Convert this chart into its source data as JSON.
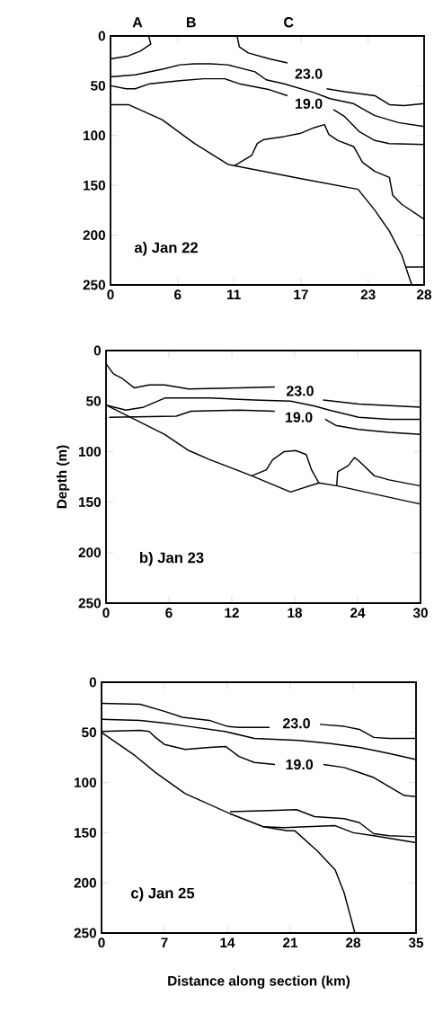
{
  "chart_data": [
    {
      "type": "line",
      "title": "a) Jan 22",
      "xlim": [
        0,
        28
      ],
      "ylim": [
        250,
        0
      ],
      "xticks": [
        0,
        6,
        11,
        17,
        23,
        28
      ],
      "yticks": [
        0,
        50,
        100,
        150,
        200,
        250
      ],
      "series": [
        {
          "color": "#000000",
          "x": [
            0,
            1.6,
            2.7,
            3.6,
            3.4
          ],
          "values": [
            23,
            20,
            15,
            8,
            0
          ]
        },
        {
          "color": "#000000",
          "x": [
            11.3,
            11.5,
            12.3,
            14.2,
            15.8,
            17.6,
            19.3,
            20.9,
            23.6,
            24.9,
            26.2,
            28
          ],
          "values": [
            0,
            11,
            17,
            23,
            27,
            null,
            53,
            56,
            60,
            69,
            70,
            68
          ]
        },
        {
          "color": "#000000",
          "x": [
            0,
            2.2,
            4.8,
            6.2,
            7.5,
            8.9,
            10.5,
            12.9,
            13.9,
            15.5,
            18.2,
            19.6,
            21.7,
            23.6,
            25.7,
            28
          ],
          "values": [
            41,
            39,
            33,
            29,
            28,
            28,
            29,
            36,
            44,
            48,
            57,
            63,
            68,
            80,
            87,
            91
          ]
        },
        {
          "color": "#000000",
          "x": [
            0,
            1.4,
            2.2,
            3.5,
            6.2,
            8.3,
            10.2,
            11.5,
            14.2,
            15.8,
            17.8,
            19.9,
            20.9,
            22.2,
            23.6,
            24.9,
            28
          ],
          "values": [
            50,
            53,
            53,
            48,
            45,
            43,
            43,
            48,
            54,
            60,
            null,
            74,
            81,
            96,
            105,
            108,
            109
          ]
        },
        {
          "color": "#000000",
          "x": [
            0,
            1.6,
            4.6,
            7.5,
            10.5,
            16.9,
            22.1,
            23.6,
            24.9,
            26,
            26.9
          ],
          "values": [
            69,
            69,
            84,
            108,
            129,
            143,
            154,
            175,
            196,
            220,
            250
          ]
        },
        {
          "color": "#000000",
          "x": [
            11.1,
            12.6,
            13.1,
            13.7,
            15.5,
            16.9,
            18.2,
            19.1,
            19.5,
            20.3,
            21.7,
            22.5,
            23.6,
            24.9,
            25.2,
            26,
            28
          ],
          "values": [
            130,
            120,
            108,
            104,
            101,
            98,
            92,
            89,
            99,
            105,
            111,
            127,
            136,
            142,
            160,
            169,
            184
          ]
        },
        {
          "color": "#000000",
          "x": [
            26.4,
            28
          ],
          "values": [
            232,
            232
          ]
        }
      ],
      "annotations": [
        "A",
        "B",
        "C",
        "23.0",
        "19.0"
      ]
    },
    {
      "type": "line",
      "title": "b) Jan 23",
      "ylabel": "Depth (m)",
      "xlim": [
        0,
        30
      ],
      "ylim": [
        250,
        0
      ],
      "xticks": [
        0,
        6,
        12,
        18,
        24,
        30
      ],
      "yticks": [
        0,
        50,
        100,
        150,
        200,
        250
      ],
      "series": [
        {
          "color": "#000000",
          "x": [
            0,
            0.7,
            1.6,
            2.7,
            4.1,
            5.6,
            7.9,
            12.7,
            16.1,
            18.4,
            20.7,
            24.1,
            30
          ],
          "values": [
            13,
            23,
            28,
            37,
            34,
            34,
            38,
            37,
            36,
            null,
            49,
            53,
            56
          ]
        },
        {
          "color": "#000000",
          "x": [
            0,
            1.9,
            3.6,
            5.6,
            9.9,
            14.1,
            17.6,
            19.9,
            21.3,
            24.1,
            27,
            30
          ],
          "values": [
            54,
            59,
            56,
            47,
            47,
            49,
            50,
            55,
            59,
            66,
            68,
            68
          ]
        },
        {
          "color": "#000000",
          "x": [
            0.3,
            6.7,
            8.1,
            12.7,
            16.1,
            18.5,
            20.9,
            21.9,
            24.1,
            27,
            30
          ],
          "values": [
            66,
            65,
            60,
            59,
            60,
            null,
            68,
            74,
            78,
            81,
            83
          ]
        },
        {
          "color": "#000000",
          "x": [
            0,
            2.7,
            5.6,
            7.9,
            9.9,
            13.9,
            17.6,
            20.3,
            22.1,
            30
          ],
          "values": [
            54,
            68,
            83,
            99,
            108,
            124,
            140,
            131,
            134,
            152
          ]
        },
        {
          "color": "#000000",
          "x": [
            13.9,
            15.3,
            15.9,
            17,
            18.1,
            19.1,
            19.6,
            20.3
          ],
          "values": [
            124,
            118,
            108,
            100,
            99,
            103,
            118,
            131
          ]
        },
        {
          "color": "#000000",
          "x": [
            22,
            22.1,
            23.1,
            23.7,
            24.1,
            24.7,
            25.6,
            27,
            30
          ],
          "values": [
            134,
            120,
            114,
            106,
            109,
            115,
            124,
            128,
            134
          ]
        }
      ],
      "annotations": [
        "23.0",
        "19.0"
      ]
    },
    {
      "type": "line",
      "title": "c) Jan 25",
      "xlabel": "Distance along section (km)",
      "xlim": [
        0,
        35
      ],
      "ylim": [
        250,
        0
      ],
      "xticks": [
        0,
        7,
        14,
        21,
        28,
        35
      ],
      "yticks": [
        0,
        50,
        100,
        150,
        200,
        250
      ],
      "series": [
        {
          "color": "#000000",
          "x": [
            0,
            4.3,
            7,
            9,
            12,
            14,
            15.3,
            18.7,
            21.5,
            24.3,
            27,
            28.7,
            30.3,
            32,
            35
          ],
          "values": [
            21,
            22,
            29,
            35,
            38,
            44,
            45,
            45,
            null,
            42,
            44,
            47,
            55,
            56,
            56
          ]
        },
        {
          "color": "#000000",
          "x": [
            0,
            4.3,
            7.3,
            9.7,
            13.7,
            17,
            22,
            25.3,
            28.7,
            32,
            35
          ],
          "values": [
            37,
            38,
            41,
            44,
            49,
            56,
            58,
            61,
            65,
            71,
            77
          ]
        },
        {
          "color": "#000000",
          "x": [
            0,
            4.3,
            5.3,
            6,
            7,
            9.3,
            12,
            13.8,
            15.3,
            17,
            19.3,
            22,
            24.7,
            27,
            28.7,
            30.3,
            32,
            33.7,
            35
          ],
          "values": [
            49,
            48,
            49,
            55,
            62,
            67,
            65,
            64,
            74,
            80,
            82,
            null,
            82,
            85,
            90,
            95,
            104,
            113,
            114
          ]
        },
        {
          "color": "#000000",
          "x": [
            0,
            3.7,
            6,
            9.3,
            14.3,
            18,
            20.7,
            21.5,
            24,
            26,
            27,
            28.2
          ],
          "values": [
            50,
            73,
            90,
            111,
            131,
            144,
            148,
            148,
            168,
            187,
            210,
            250
          ]
        },
        {
          "color": "#000000",
          "x": [
            14.3,
            18.7,
            21.7,
            23.7,
            27,
            28.7,
            30.3,
            32,
            35
          ],
          "values": [
            129,
            128,
            127,
            134,
            136,
            140,
            151,
            153,
            154
          ]
        },
        {
          "color": "#000000",
          "x": [
            18,
            20.3,
            26,
            28,
            30.3,
            35
          ],
          "values": [
            144,
            145,
            143,
            150,
            153,
            160
          ]
        }
      ],
      "annotations": [
        "23.0",
        "19.0"
      ]
    }
  ]
}
